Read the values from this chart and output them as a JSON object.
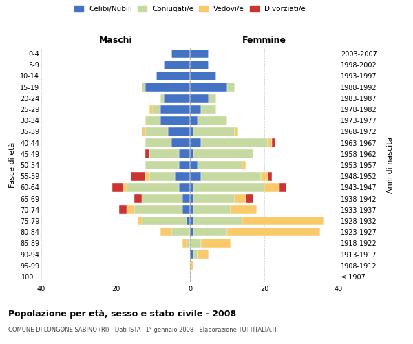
{
  "age_groups": [
    "100+",
    "95-99",
    "90-94",
    "85-89",
    "80-84",
    "75-79",
    "70-74",
    "65-69",
    "60-64",
    "55-59",
    "50-54",
    "45-49",
    "40-44",
    "35-39",
    "30-34",
    "25-29",
    "20-24",
    "15-19",
    "10-14",
    "5-9",
    "0-4"
  ],
  "birth_years": [
    "≤ 1907",
    "1908-1912",
    "1913-1917",
    "1918-1922",
    "1923-1927",
    "1928-1932",
    "1933-1937",
    "1938-1942",
    "1943-1947",
    "1948-1952",
    "1953-1957",
    "1958-1962",
    "1963-1967",
    "1968-1972",
    "1973-1977",
    "1978-1982",
    "1983-1987",
    "1988-1992",
    "1993-1997",
    "1998-2002",
    "2003-2007"
  ],
  "colors": {
    "celibi": "#4472c4",
    "coniugati": "#c5d9a0",
    "vedovi": "#fac96a",
    "divorziati": "#cc3333"
  },
  "maschi": {
    "celibi": [
      0,
      0,
      0,
      0,
      0,
      1,
      2,
      2,
      3,
      4,
      3,
      3,
      5,
      6,
      8,
      8,
      7,
      12,
      9,
      7,
      5
    ],
    "coniugati": [
      0,
      0,
      0,
      1,
      5,
      12,
      13,
      11,
      14,
      7,
      9,
      8,
      7,
      6,
      4,
      2,
      1,
      1,
      0,
      0,
      0
    ],
    "vedovi": [
      0,
      0,
      0,
      1,
      3,
      1,
      2,
      0,
      1,
      1,
      0,
      0,
      0,
      1,
      0,
      1,
      0,
      0,
      0,
      0,
      0
    ],
    "divorziati": [
      0,
      0,
      0,
      0,
      0,
      0,
      2,
      2,
      3,
      4,
      0,
      1,
      0,
      0,
      0,
      0,
      0,
      0,
      0,
      0,
      0
    ]
  },
  "femmine": {
    "celibi": [
      0,
      0,
      1,
      0,
      1,
      1,
      1,
      1,
      1,
      3,
      2,
      1,
      3,
      1,
      2,
      3,
      5,
      10,
      7,
      5,
      5
    ],
    "coniugati": [
      0,
      0,
      1,
      3,
      9,
      13,
      10,
      11,
      19,
      16,
      12,
      16,
      18,
      11,
      8,
      4,
      2,
      2,
      0,
      0,
      0
    ],
    "vedovi": [
      0,
      1,
      3,
      8,
      25,
      22,
      7,
      3,
      4,
      2,
      1,
      0,
      1,
      1,
      0,
      0,
      0,
      0,
      0,
      0,
      0
    ],
    "divorziati": [
      0,
      0,
      0,
      0,
      0,
      0,
      0,
      2,
      2,
      1,
      0,
      0,
      1,
      0,
      0,
      0,
      0,
      0,
      0,
      0,
      0
    ]
  },
  "title": "Popolazione per età, sesso e stato civile - 2008",
  "subtitle": "COMUNE DI LONGONE SABINO (RI) - Dati ISTAT 1° gennaio 2008 - Elaborazione TUTTITALIA.IT",
  "ylabel_left": "Fasce di età",
  "ylabel_right": "Anni di nascita",
  "xlabel_left": "Maschi",
  "xlabel_right": "Femmine",
  "xlim": 40,
  "bg_color": "#ffffff",
  "grid_color": "#cccccc",
  "legend_labels": [
    "Celibi/Nubili",
    "Coniugati/e",
    "Vedovi/e",
    "Divorziati/e"
  ]
}
